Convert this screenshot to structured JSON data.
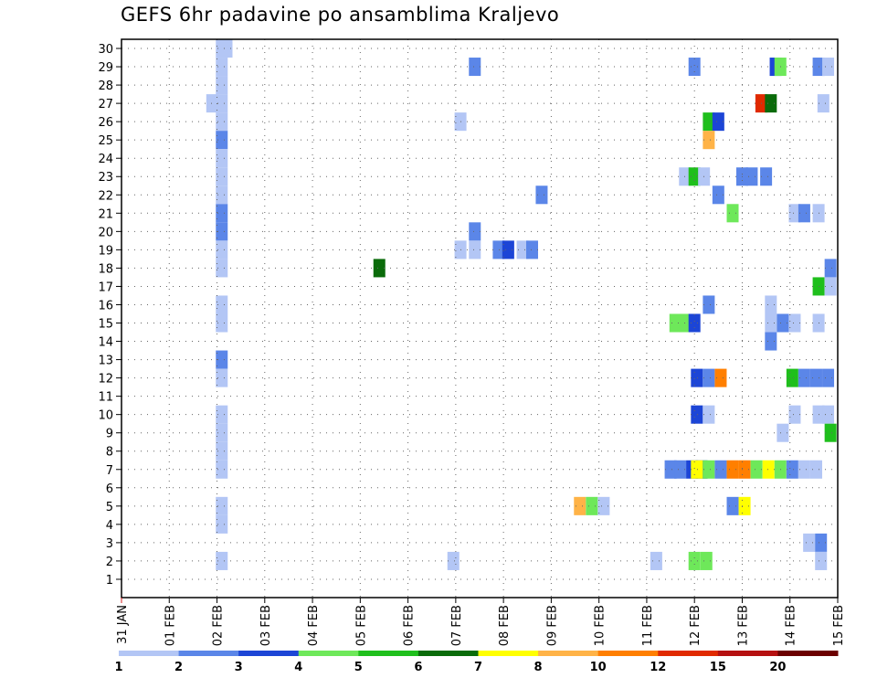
{
  "chart_data": {
    "type": "heatmap",
    "title": "GEFS 6hr padavine po ansamblima Kraljevo",
    "x_ticks": [
      "31 JAN",
      "01 FEB",
      "02 FEB",
      "03 FEB",
      "04 FEB",
      "05 FEB",
      "06 FEB",
      "07 FEB",
      "08 FEB",
      "09 FEB",
      "10 FEB",
      "11 FEB",
      "12 FEB",
      "13 FEB",
      "14 FEB",
      "15 FEB"
    ],
    "x_range_days": [
      0,
      15
    ],
    "y_ticks": [
      "1",
      "2",
      "3",
      "4",
      "5",
      "6",
      "7",
      "8",
      "9",
      "10",
      "11",
      "12",
      "13",
      "14",
      "15",
      "16",
      "17",
      "18",
      "19",
      "20",
      "21",
      "22",
      "23",
      "24",
      "25",
      "26",
      "27",
      "28",
      "29",
      "30"
    ],
    "y_range_members": [
      0,
      30
    ],
    "grid": true,
    "colorbar": {
      "labels": [
        "1",
        "2",
        "3",
        "4",
        "5",
        "6",
        "7",
        "8",
        "10",
        "12",
        "15",
        "20"
      ],
      "colors": [
        "#b3c6f5",
        "#5b86e8",
        "#1c45d6",
        "#6ee85a",
        "#1fbf1c",
        "#0a6b0a",
        "#ffff00",
        "#ffb347",
        "#ff7f00",
        "#e02a00",
        "#b51010",
        "#6b0000"
      ]
    },
    "cells": [
      {
        "member": 30,
        "t": 2.1,
        "c": 0
      },
      {
        "member": 30,
        "t": 2.2,
        "c": 0
      },
      {
        "member": 29,
        "t": 2.1,
        "c": 0
      },
      {
        "member": 29,
        "t": 7.4,
        "c": 1
      },
      {
        "member": 29,
        "t": 12.0,
        "c": 1
      },
      {
        "member": 29,
        "t": 13.7,
        "c": 2
      },
      {
        "member": 29,
        "t": 13.8,
        "c": 3
      },
      {
        "member": 29,
        "t": 14.6,
        "c": 1
      },
      {
        "member": 29,
        "t": 14.8,
        "c": 0
      },
      {
        "member": 28,
        "t": 2.1,
        "c": 0
      },
      {
        "member": 27,
        "t": 1.9,
        "c": 0
      },
      {
        "member": 27,
        "t": 2.1,
        "c": 0
      },
      {
        "member": 27,
        "t": 13.4,
        "c": 9
      },
      {
        "member": 27,
        "t": 13.6,
        "c": 5
      },
      {
        "member": 27,
        "t": 14.7,
        "c": 0
      },
      {
        "member": 26,
        "t": 2.1,
        "c": 0
      },
      {
        "member": 26,
        "t": 7.1,
        "c": 0
      },
      {
        "member": 26,
        "t": 12.3,
        "c": 4
      },
      {
        "member": 26,
        "t": 12.5,
        "c": 2
      },
      {
        "member": 25,
        "t": 2.1,
        "c": 1
      },
      {
        "member": 25,
        "t": 12.3,
        "c": 7
      },
      {
        "member": 24,
        "t": 2.1,
        "c": 0
      },
      {
        "member": 23,
        "t": 2.1,
        "c": 0
      },
      {
        "member": 23,
        "t": 11.8,
        "c": 0
      },
      {
        "member": 23,
        "t": 12.0,
        "c": 4
      },
      {
        "member": 23,
        "t": 12.2,
        "c": 0
      },
      {
        "member": 23,
        "t": 13.0,
        "c": 1
      },
      {
        "member": 23,
        "t": 13.2,
        "c": 1
      },
      {
        "member": 23,
        "t": 13.5,
        "c": 1
      },
      {
        "member": 22,
        "t": 2.1,
        "c": 0
      },
      {
        "member": 22,
        "t": 8.8,
        "c": 1
      },
      {
        "member": 22,
        "t": 12.5,
        "c": 1
      },
      {
        "member": 21,
        "t": 2.1,
        "c": 1
      },
      {
        "member": 21,
        "t": 12.8,
        "c": 3
      },
      {
        "member": 21,
        "t": 14.1,
        "c": 0
      },
      {
        "member": 21,
        "t": 14.3,
        "c": 1
      },
      {
        "member": 21,
        "t": 14.6,
        "c": 0
      },
      {
        "member": 20,
        "t": 2.1,
        "c": 1
      },
      {
        "member": 20,
        "t": 7.4,
        "c": 1
      },
      {
        "member": 19,
        "t": 2.1,
        "c": 0
      },
      {
        "member": 19,
        "t": 7.1,
        "c": 0
      },
      {
        "member": 19,
        "t": 7.4,
        "c": 0
      },
      {
        "member": 19,
        "t": 7.9,
        "c": 1
      },
      {
        "member": 19,
        "t": 8.1,
        "c": 2
      },
      {
        "member": 19,
        "t": 8.4,
        "c": 0
      },
      {
        "member": 19,
        "t": 8.6,
        "c": 1
      },
      {
        "member": 18,
        "t": 2.1,
        "c": 0
      },
      {
        "member": 18,
        "t": 5.4,
        "c": 5
      },
      {
        "member": 18,
        "t": 14.85,
        "c": 1
      },
      {
        "member": 17,
        "t": 14.6,
        "c": 4
      },
      {
        "member": 17,
        "t": 14.85,
        "c": 0
      },
      {
        "member": 16,
        "t": 2.1,
        "c": 0
      },
      {
        "member": 16,
        "t": 12.3,
        "c": 1
      },
      {
        "member": 16,
        "t": 13.6,
        "c": 0
      },
      {
        "member": 15,
        "t": 2.1,
        "c": 0
      },
      {
        "member": 15,
        "t": 11.6,
        "c": 3
      },
      {
        "member": 15,
        "t": 11.8,
        "c": 3
      },
      {
        "member": 15,
        "t": 12.0,
        "c": 2
      },
      {
        "member": 15,
        "t": 13.6,
        "c": 0
      },
      {
        "member": 15,
        "t": 13.85,
        "c": 1
      },
      {
        "member": 15,
        "t": 14.1,
        "c": 0
      },
      {
        "member": 15,
        "t": 14.6,
        "c": 0
      },
      {
        "member": 14,
        "t": 13.6,
        "c": 1
      },
      {
        "member": 13,
        "t": 2.1,
        "c": 1
      },
      {
        "member": 12,
        "t": 2.1,
        "c": 0
      },
      {
        "member": 12,
        "t": 12.05,
        "c": 2
      },
      {
        "member": 12,
        "t": 12.3,
        "c": 1
      },
      {
        "member": 12,
        "t": 12.55,
        "c": 8
      },
      {
        "member": 12,
        "t": 14.05,
        "c": 4
      },
      {
        "member": 12,
        "t": 14.3,
        "c": 1
      },
      {
        "member": 12,
        "t": 14.55,
        "c": 1
      },
      {
        "member": 12,
        "t": 14.8,
        "c": 1
      },
      {
        "member": 10,
        "t": 2.1,
        "c": 0
      },
      {
        "member": 10,
        "t": 12.05,
        "c": 2
      },
      {
        "member": 10,
        "t": 12.3,
        "c": 0
      },
      {
        "member": 10,
        "t": 14.1,
        "c": 0
      },
      {
        "member": 10,
        "t": 14.6,
        "c": 0
      },
      {
        "member": 10,
        "t": 14.8,
        "c": 0
      },
      {
        "member": 9,
        "t": 2.1,
        "c": 0
      },
      {
        "member": 9,
        "t": 13.85,
        "c": 0
      },
      {
        "member": 9,
        "t": 14.85,
        "c": 4
      },
      {
        "member": 8,
        "t": 2.1,
        "c": 0
      },
      {
        "member": 7,
        "t": 2.1,
        "c": 0
      },
      {
        "member": 7,
        "t": 11.5,
        "c": 1
      },
      {
        "member": 7,
        "t": 11.7,
        "c": 1
      },
      {
        "member": 7,
        "t": 11.95,
        "c": 2
      },
      {
        "member": 7,
        "t": 12.15,
        "c": 2
      },
      {
        "member": 7,
        "t": 12.05,
        "c": 6
      },
      {
        "member": 7,
        "t": 12.3,
        "c": 3
      },
      {
        "member": 7,
        "t": 12.55,
        "c": 1
      },
      {
        "member": 7,
        "t": 12.8,
        "c": 8
      },
      {
        "member": 7,
        "t": 13.05,
        "c": 8
      },
      {
        "member": 7,
        "t": 13.3,
        "c": 3
      },
      {
        "member": 7,
        "t": 13.55,
        "c": 6
      },
      {
        "member": 7,
        "t": 13.8,
        "c": 3
      },
      {
        "member": 7,
        "t": 14.05,
        "c": 1
      },
      {
        "member": 7,
        "t": 14.3,
        "c": 0
      },
      {
        "member": 7,
        "t": 14.55,
        "c": 0
      },
      {
        "member": 5,
        "t": 2.1,
        "c": 0
      },
      {
        "member": 5,
        "t": 9.6,
        "c": 7
      },
      {
        "member": 5,
        "t": 9.85,
        "c": 3
      },
      {
        "member": 5,
        "t": 10.1,
        "c": 0
      },
      {
        "member": 5,
        "t": 12.8,
        "c": 1
      },
      {
        "member": 5,
        "t": 13.05,
        "c": 6
      },
      {
        "member": 4,
        "t": 2.1,
        "c": 0
      },
      {
        "member": 3,
        "t": 14.4,
        "c": 0
      },
      {
        "member": 3,
        "t": 14.65,
        "c": 1
      },
      {
        "member": 2,
        "t": 2.1,
        "c": 0
      },
      {
        "member": 2,
        "t": 6.95,
        "c": 0
      },
      {
        "member": 2,
        "t": 11.2,
        "c": 0
      },
      {
        "member": 2,
        "t": 12.0,
        "c": 3
      },
      {
        "member": 2,
        "t": 12.25,
        "c": 3
      },
      {
        "member": 2,
        "t": 14.65,
        "c": 0
      }
    ]
  }
}
